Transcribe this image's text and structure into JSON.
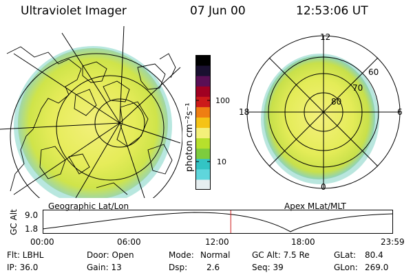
{
  "header": {
    "title": "Ultraviolet Imager",
    "date": "07 Jun 00",
    "time": "12:53:06 UT"
  },
  "colorbar": {
    "unit_label": "photon cm⁻²s⁻¹",
    "ticks": [
      "100",
      "10"
    ],
    "colors": [
      "#e6eef0",
      "#5fd6dc",
      "#33c4c4",
      "#7dcc3e",
      "#b7e02c",
      "#f4f07a",
      "#f5c316",
      "#ef7e12",
      "#cc1a1a",
      "#a00022",
      "#5a0f55",
      "#1a1030",
      "#000000"
    ]
  },
  "map_left": {
    "caption": "Geographic Lat/Lon"
  },
  "map_right": {
    "caption": "Apex MLat/MLT",
    "mlt_labels": [
      "12",
      "18",
      "6",
      "0"
    ],
    "mlat_labels": [
      "60",
      "70",
      "80"
    ]
  },
  "altitude_plot": {
    "ylabel": "GC Alt",
    "ymax": "9.0",
    "ymin": "1.8",
    "x_ticks": [
      "00:00",
      "06:00",
      "12:00",
      "18:00",
      "23:59"
    ],
    "current_time_hours": 12.885
  },
  "info": {
    "filter": "Flt: LBHL",
    "ip": "IP: 36.0",
    "door": "Door: Open",
    "gain": "Gain: 13",
    "mode_label": "Mode:",
    "mode_value": "Normal",
    "dsp_label": "Dsp:",
    "dsp_value": "2.6",
    "gc_alt": "GC Alt: 7.5 Re",
    "seq": "Seq: 39",
    "glat_label": "GLat:",
    "glat_value": "80.4",
    "glon_label": "GLon:",
    "glon_value": "269.0"
  }
}
